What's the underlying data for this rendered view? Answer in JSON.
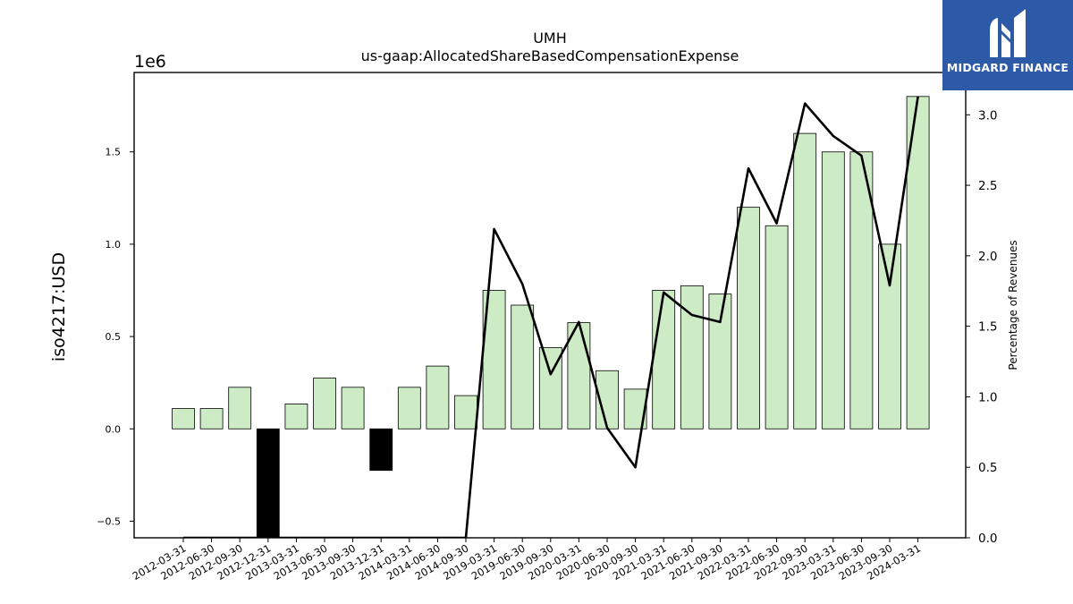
{
  "logo": {
    "text": "MIDGARD FINANCE",
    "icon": "midgard-m-logo-icon",
    "color": "#2c5aa6"
  },
  "chart_data": {
    "type": "bar",
    "title": "UMH",
    "subtitle": "us-gaap:AllocatedShareBasedCompensationExpense",
    "ylabel": "iso4217:USD",
    "y2label": "Percentage of Revenues",
    "y_offset_label": "1e6",
    "ylim": [
      -590000,
      1930000
    ],
    "y2lim": [
      0,
      3.3
    ],
    "yticks": [
      -500000,
      0,
      500000,
      1000000,
      1500000
    ],
    "ytick_labels": [
      "−0.5",
      "0.0",
      "0.5",
      "1.0",
      "1.5"
    ],
    "y2ticks": [
      0,
      0.5,
      1.0,
      1.5,
      2.0,
      2.5,
      3.0
    ],
    "y2tick_labels": [
      "0.0",
      "0.5",
      "1.0",
      "1.5",
      "2.0",
      "2.5",
      "3.0"
    ],
    "categories": [
      "2012-03-31",
      "2012-06-30",
      "2012-09-30",
      "2012-12-31",
      "2013-03-31",
      "2013-06-30",
      "2013-09-30",
      "2013-12-31",
      "2014-03-31",
      "2014-06-30",
      "2014-09-30",
      "2019-03-31",
      "2019-06-30",
      "2019-09-30",
      "2020-03-31",
      "2020-06-30",
      "2020-09-30",
      "2021-03-31",
      "2021-06-30",
      "2021-09-30",
      "2022-03-31",
      "2022-06-30",
      "2022-09-30",
      "2023-03-31",
      "2023-06-30",
      "2023-09-30",
      "2024-03-31"
    ],
    "series": [
      {
        "type": "bar",
        "values": [
          110000,
          110000,
          225000,
          -600000,
          135000,
          275000,
          225000,
          -225000,
          225000,
          340000,
          180000,
          750000,
          670000,
          440000,
          575000,
          315000,
          215000,
          750000,
          775000,
          730000,
          1200000,
          1100000,
          1600000,
          1500000,
          1500000,
          1000000,
          1800000
        ]
      },
      {
        "type": "line",
        "axis": "right",
        "values": [
          0,
          0,
          0,
          0,
          0,
          0,
          0,
          0,
          0,
          0,
          0,
          2.19,
          1.8,
          1.16,
          1.53,
          0.78,
          0.5,
          1.74,
          1.58,
          1.53,
          2.62,
          2.23,
          3.08,
          2.85,
          2.71,
          1.79,
          3.13
        ]
      }
    ],
    "colors": {
      "positive": "#cdebc5",
      "negative": "#000000",
      "line": "#000000",
      "edge": "#000000"
    },
    "grid": false,
    "legend": "none"
  }
}
